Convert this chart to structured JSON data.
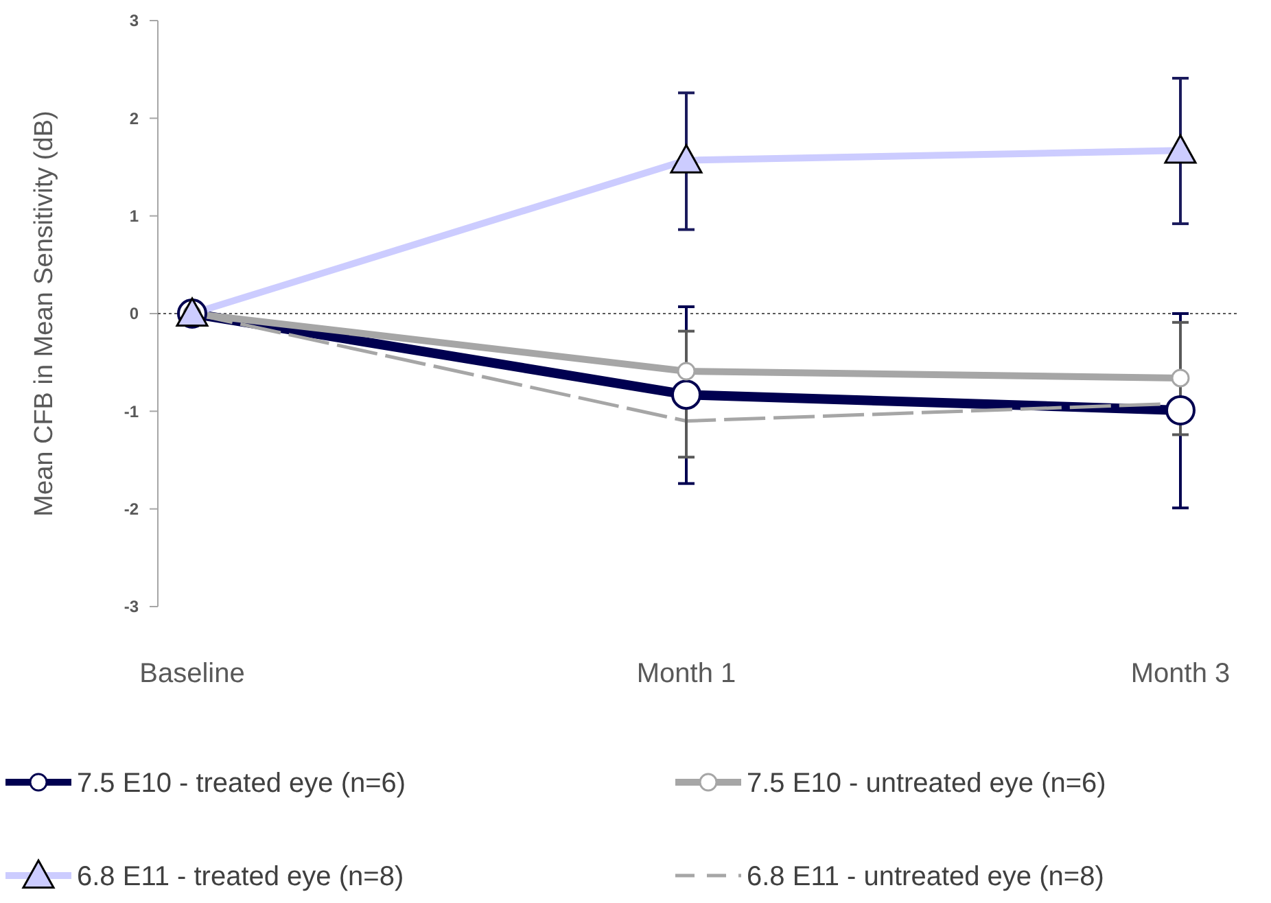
{
  "chart_data": {
    "type": "line",
    "ylabel": "Mean CFB in Mean Sensitivity (dB)",
    "categories": [
      "Baseline",
      "Month 1",
      "Month 3"
    ],
    "ylim": [
      -3,
      3
    ],
    "yticks": [
      -3,
      -2,
      -1,
      0,
      1,
      2,
      3
    ],
    "grid": false,
    "legend": "bottom",
    "ref_lines": [
      {
        "axis": "y",
        "value": 0,
        "color": "#595959",
        "line_style": "dotted"
      }
    ],
    "series": [
      {
        "name": "7.5 E10 - treated eye (n=6)",
        "color": "#000050",
        "marker": "circle",
        "line_style": "solid",
        "values": [
          0,
          -0.83,
          -0.99
        ],
        "errors": [
          null,
          [
            -1.74,
            0.07
          ],
          [
            -1.99,
            0.0
          ]
        ]
      },
      {
        "name": "7.5 E10 - untreated eye (n=6)",
        "color": "#a6a6a6",
        "marker": "circle",
        "line_style": "solid",
        "values": [
          0,
          -0.59,
          -0.66
        ],
        "errors": [
          null,
          [
            -1.47,
            -0.18
          ],
          [
            -1.24,
            -0.09
          ]
        ]
      },
      {
        "name": "6.8 E11 - treated eye (n=8)",
        "color": "#ccccff",
        "marker": "triangle",
        "line_style": "solid",
        "values": [
          0,
          1.57,
          1.67
        ],
        "errors": [
          null,
          [
            0.86,
            2.26
          ],
          [
            0.92,
            2.41
          ]
        ]
      },
      {
        "name": "6.8 E11 - untreated eye (n=8)",
        "color": "#a6a6a6",
        "marker": "none",
        "line_style": "dashed",
        "values": [
          0,
          -1.1,
          -0.92
        ]
      }
    ]
  }
}
